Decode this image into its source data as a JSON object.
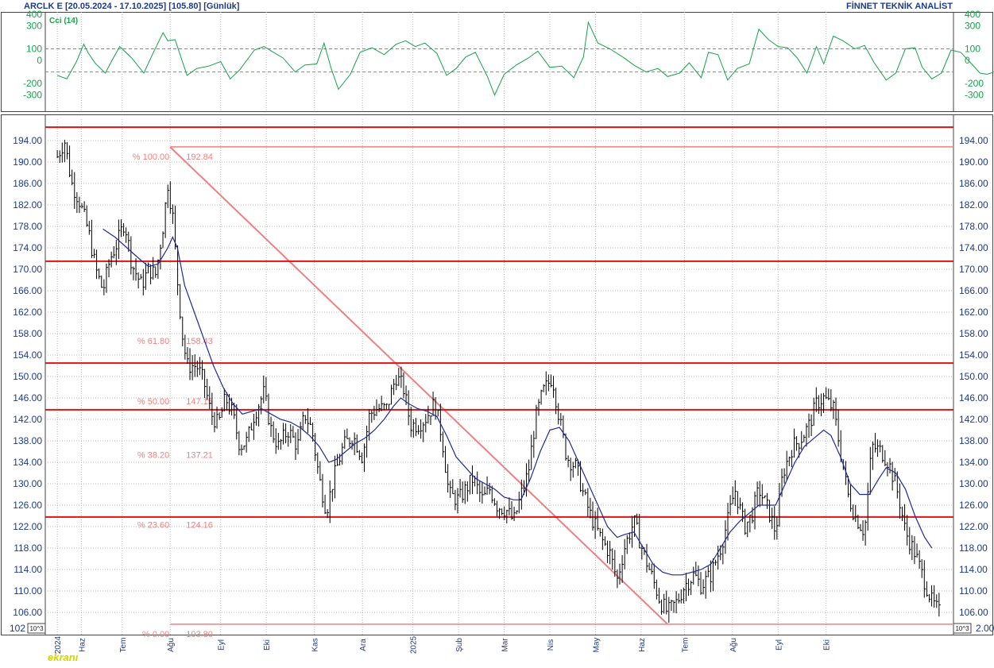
{
  "header": {
    "title": "ARCLK E  [20.05.2024 - 17.10.2025]  [105.80]  [Günlük]",
    "brand": "FİNNET TEKNİK ANALİST"
  },
  "indicator": {
    "label": "Cci (14)"
  },
  "axis_badges": {
    "left": "10^3",
    "right": "10^3"
  },
  "logo": "ekranı",
  "colors": {
    "price_bars": "#000000",
    "moving_average": "#1e2b9c",
    "cci_line": "#16a34a",
    "support_resistance": "#d91515",
    "fibonacci": "#f08080",
    "axis_text": "#1e3a8a",
    "grid": "#b8b8b8"
  },
  "chart_data": [
    {
      "type": "line",
      "name": "Cci (14)",
      "ylim": [
        -440,
        420
      ],
      "y_ticks": [
        400,
        300,
        100,
        0,
        -200,
        -300
      ],
      "y_tick_labels": [
        "400",
        "300",
        "100",
        "0",
        "-200",
        "-300"
      ],
      "dashed_levels": [
        100,
        -100
      ],
      "points": [
        [
          0.0,
          -130
        ],
        [
          0.4,
          -160
        ],
        [
          0.8,
          -10
        ],
        [
          1.1,
          140
        ],
        [
          1.3,
          60
        ],
        [
          1.6,
          -30
        ],
        [
          2.0,
          -110
        ],
        [
          2.3,
          10
        ],
        [
          2.6,
          120
        ],
        [
          3.1,
          20
        ],
        [
          3.6,
          -110
        ],
        [
          4.0,
          70
        ],
        [
          4.4,
          240
        ],
        [
          4.6,
          170
        ],
        [
          4.9,
          180
        ],
        [
          5.4,
          -130
        ],
        [
          5.8,
          -70
        ],
        [
          6.3,
          -50
        ],
        [
          6.8,
          -10
        ],
        [
          7.2,
          -160
        ],
        [
          7.6,
          -80
        ],
        [
          8.2,
          90
        ],
        [
          8.6,
          120
        ],
        [
          9.0,
          70
        ],
        [
          9.4,
          20
        ],
        [
          9.9,
          -100
        ],
        [
          10.3,
          -40
        ],
        [
          10.8,
          -30
        ],
        [
          11.1,
          150
        ],
        [
          11.4,
          -70
        ],
        [
          11.7,
          -250
        ],
        [
          12.2,
          -120
        ],
        [
          12.6,
          70
        ],
        [
          13.1,
          110
        ],
        [
          13.6,
          50
        ],
        [
          14.1,
          140
        ],
        [
          14.5,
          170
        ],
        [
          14.9,
          120
        ],
        [
          15.3,
          150
        ],
        [
          15.8,
          60
        ],
        [
          16.2,
          -130
        ],
        [
          16.6,
          -70
        ],
        [
          17.0,
          30
        ],
        [
          17.4,
          70
        ],
        [
          17.9,
          -140
        ],
        [
          18.2,
          -300
        ],
        [
          18.6,
          -120
        ],
        [
          19.1,
          -40
        ],
        [
          19.6,
          20
        ],
        [
          20.0,
          80
        ],
        [
          20.5,
          -60
        ],
        [
          21.0,
          -50
        ],
        [
          21.5,
          -150
        ],
        [
          21.9,
          30
        ],
        [
          22.1,
          330
        ],
        [
          22.5,
          150
        ],
        [
          23.0,
          100
        ],
        [
          23.6,
          20
        ],
        [
          24.0,
          -40
        ],
        [
          24.5,
          -100
        ],
        [
          25.0,
          -70
        ],
        [
          25.4,
          -140
        ],
        [
          25.9,
          -110
        ],
        [
          26.3,
          -20
        ],
        [
          26.8,
          -150
        ],
        [
          27.1,
          70
        ],
        [
          27.5,
          50
        ],
        [
          27.9,
          -170
        ],
        [
          28.3,
          -70
        ],
        [
          28.8,
          -30
        ],
        [
          29.2,
          270
        ],
        [
          29.6,
          180
        ],
        [
          30.0,
          120
        ],
        [
          30.4,
          110
        ],
        [
          30.8,
          20
        ],
        [
          31.2,
          -110
        ],
        [
          31.6,
          120
        ],
        [
          31.9,
          -30
        ],
        [
          32.3,
          210
        ],
        [
          32.7,
          170
        ],
        [
          33.2,
          100
        ],
        [
          33.6,
          130
        ],
        [
          34.0,
          -20
        ],
        [
          34.5,
          -170
        ],
        [
          34.9,
          -110
        ],
        [
          35.3,
          100
        ],
        [
          35.7,
          110
        ],
        [
          36.0,
          -60
        ],
        [
          36.4,
          -160
        ],
        [
          36.8,
          -110
        ],
        [
          37.2,
          90
        ],
        [
          37.6,
          70
        ],
        [
          38.1,
          -40
        ],
        [
          38.4,
          -110
        ],
        [
          38.7,
          -120
        ],
        [
          39.0,
          -100
        ],
        [
          39.4,
          -130
        ]
      ]
    },
    {
      "type": "line",
      "title": "ARCLK E  [20.05.2024 - 17.10.2025]  [105.80]  [Günlük]",
      "ylim": [
        102,
        198
      ],
      "y_ticks": [
        194,
        190,
        186,
        182,
        178,
        174,
        170,
        166,
        162,
        158,
        154,
        150,
        146,
        142,
        138,
        134,
        130,
        126,
        122,
        118,
        114,
        110,
        106
      ],
      "y_tick_labels": [
        "194.00",
        "190.00",
        "186.00",
        "182.00",
        "178.00",
        "174.00",
        "170.00",
        "166.00",
        "162.00",
        "158.00",
        "154.00",
        "150.00",
        "146.00",
        "142.00",
        "138.00",
        "134.00",
        "130.00",
        "126.00",
        "122.00",
        "118.00",
        "114.00",
        "110.00",
        "106.00"
      ],
      "y_bottom_labels": {
        "left": "102",
        "right": "2.00"
      },
      "x_ticks": [
        "2024",
        "Haz",
        "Tem",
        "Ağu",
        "Eyl",
        "Eki",
        "Kas",
        "Ara",
        "2025",
        "Şub",
        "Mar",
        "Nis",
        "May",
        "Haz",
        "Tem",
        "Ağu",
        "Eyl",
        "Eki"
      ],
      "x_tick_positions": [
        0.0,
        1.0,
        2.7,
        4.7,
        6.8,
        8.7,
        10.7,
        12.7,
        14.8,
        16.7,
        18.6,
        20.5,
        22.4,
        24.3,
        26.1,
        28.1,
        30.0,
        32.0
      ],
      "close": [
        [
          0.0,
          191
        ],
        [
          0.3,
          194
        ],
        [
          0.6,
          186
        ],
        [
          0.9,
          183
        ],
        [
          1.3,
          177
        ],
        [
          1.6,
          170
        ],
        [
          1.9,
          166
        ],
        [
          2.2,
          172
        ],
        [
          2.5,
          175
        ],
        [
          2.8,
          179
        ],
        [
          3.1,
          171
        ],
        [
          3.5,
          167
        ],
        [
          3.8,
          170
        ],
        [
          4.1,
          169
        ],
        [
          4.4,
          178
        ],
        [
          4.6,
          186
        ],
        [
          4.8,
          180
        ],
        [
          5.0,
          168
        ],
        [
          5.2,
          158
        ],
        [
          5.4,
          152
        ],
        [
          5.8,
          152
        ],
        [
          6.1,
          149
        ],
        [
          6.4,
          143
        ],
        [
          6.7,
          141
        ],
        [
          7.0,
          146
        ],
        [
          7.3,
          143
        ],
        [
          7.6,
          137
        ],
        [
          7.9,
          138
        ],
        [
          8.2,
          143
        ],
        [
          8.6,
          147
        ],
        [
          8.9,
          140
        ],
        [
          9.2,
          137
        ],
        [
          9.6,
          140
        ],
        [
          10.0,
          137
        ],
        [
          10.3,
          143
        ],
        [
          10.6,
          140
        ],
        [
          10.9,
          131
        ],
        [
          11.2,
          125
        ],
        [
          11.5,
          131
        ],
        [
          11.9,
          137
        ],
        [
          12.3,
          139
        ],
        [
          12.7,
          135
        ],
        [
          13.0,
          143
        ],
        [
          13.3,
          144
        ],
        [
          13.7,
          144
        ],
        [
          14.1,
          150
        ],
        [
          14.4,
          148
        ],
        [
          14.7,
          141
        ],
        [
          15.0,
          141
        ],
        [
          15.3,
          142
        ],
        [
          15.7,
          145
        ],
        [
          16.0,
          139
        ],
        [
          16.3,
          128
        ],
        [
          16.7,
          127
        ],
        [
          17.0,
          129
        ],
        [
          17.3,
          131
        ],
        [
          17.7,
          127
        ],
        [
          18.0,
          129
        ],
        [
          18.3,
          126
        ],
        [
          18.7,
          125
        ],
        [
          19.0,
          123
        ],
        [
          19.3,
          128
        ],
        [
          19.6,
          132
        ],
        [
          19.9,
          142
        ],
        [
          20.2,
          147
        ],
        [
          20.6,
          150
        ],
        [
          20.9,
          142
        ],
        [
          21.2,
          135
        ],
        [
          21.6,
          133
        ],
        [
          21.9,
          128
        ],
        [
          22.2,
          124
        ],
        [
          22.6,
          120
        ],
        [
          23.0,
          117
        ],
        [
          23.3,
          112
        ],
        [
          23.6,
          118
        ],
        [
          24.0,
          123
        ],
        [
          24.4,
          117
        ],
        [
          24.8,
          112
        ],
        [
          25.1,
          108
        ],
        [
          25.4,
          106
        ],
        [
          25.8,
          108
        ],
        [
          26.1,
          111
        ],
        [
          26.5,
          113
        ],
        [
          26.8,
          111
        ],
        [
          27.2,
          113
        ],
        [
          27.6,
          118
        ],
        [
          27.9,
          123
        ],
        [
          28.2,
          129
        ],
        [
          28.6,
          122
        ],
        [
          28.9,
          124
        ],
        [
          29.2,
          129
        ],
        [
          29.6,
          125
        ],
        [
          29.9,
          121
        ],
        [
          30.2,
          132
        ],
        [
          30.6,
          137
        ],
        [
          30.9,
          138
        ],
        [
          31.3,
          141
        ],
        [
          31.6,
          145
        ],
        [
          31.9,
          146
        ],
        [
          32.3,
          144
        ],
        [
          32.6,
          136
        ],
        [
          32.9,
          128
        ],
        [
          33.2,
          124
        ],
        [
          33.6,
          121
        ],
        [
          33.9,
          137
        ],
        [
          34.3,
          136
        ],
        [
          34.6,
          134
        ],
        [
          35.0,
          128
        ],
        [
          35.3,
          121
        ],
        [
          35.7,
          117
        ],
        [
          36.0,
          113
        ],
        [
          36.4,
          108
        ],
        [
          36.7,
          106
        ]
      ],
      "moving_average": [
        [
          1.9,
          177.5
        ],
        [
          2.4,
          176
        ],
        [
          2.9,
          174
        ],
        [
          3.4,
          172
        ],
        [
          3.8,
          170.5
        ],
        [
          4.2,
          171
        ],
        [
          4.6,
          174
        ],
        [
          4.8,
          176
        ],
        [
          5.0,
          174
        ],
        [
          5.3,
          167
        ],
        [
          5.7,
          162
        ],
        [
          6.1,
          157
        ],
        [
          6.5,
          152
        ],
        [
          6.9,
          148
        ],
        [
          7.3,
          145
        ],
        [
          7.7,
          143
        ],
        [
          8.1,
          143.5
        ],
        [
          8.5,
          144
        ],
        [
          8.9,
          143
        ],
        [
          9.3,
          142
        ],
        [
          9.7,
          141.5
        ],
        [
          10.1,
          140.5
        ],
        [
          10.5,
          139
        ],
        [
          10.9,
          137
        ],
        [
          11.3,
          134
        ],
        [
          11.6,
          134.5
        ],
        [
          12.0,
          136
        ],
        [
          12.4,
          137.5
        ],
        [
          12.8,
          138.5
        ],
        [
          13.2,
          140
        ],
        [
          13.6,
          142
        ],
        [
          14.0,
          144.5
        ],
        [
          14.3,
          146
        ],
        [
          14.6,
          145
        ],
        [
          15.0,
          144
        ],
        [
          15.4,
          143.5
        ],
        [
          15.8,
          142.5
        ],
        [
          16.2,
          139
        ],
        [
          16.6,
          135
        ],
        [
          17.0,
          133
        ],
        [
          17.4,
          131
        ],
        [
          17.8,
          130
        ],
        [
          18.2,
          129
        ],
        [
          18.6,
          127.5
        ],
        [
          19.0,
          127
        ],
        [
          19.3,
          127
        ],
        [
          19.7,
          131
        ],
        [
          20.1,
          136
        ],
        [
          20.5,
          140
        ],
        [
          20.9,
          140.5
        ],
        [
          21.3,
          138
        ],
        [
          21.7,
          134
        ],
        [
          22.1,
          130
        ],
        [
          22.5,
          126
        ],
        [
          22.9,
          122
        ],
        [
          23.3,
          120
        ],
        [
          23.6,
          120.5
        ],
        [
          24.0,
          121
        ],
        [
          24.4,
          118
        ],
        [
          24.8,
          115
        ],
        [
          25.2,
          113.5
        ],
        [
          25.6,
          113
        ],
        [
          26.0,
          113
        ],
        [
          26.4,
          113.5
        ],
        [
          26.8,
          114
        ],
        [
          27.2,
          115
        ],
        [
          27.6,
          118
        ],
        [
          28.0,
          121
        ],
        [
          28.4,
          123
        ],
        [
          28.8,
          124.5
        ],
        [
          29.2,
          126
        ],
        [
          29.6,
          126
        ],
        [
          29.9,
          126
        ],
        [
          30.3,
          130
        ],
        [
          30.7,
          134
        ],
        [
          31.1,
          137
        ],
        [
          31.5,
          138.5
        ],
        [
          31.9,
          140
        ],
        [
          32.2,
          139
        ],
        [
          32.6,
          135
        ],
        [
          33.0,
          130
        ],
        [
          33.4,
          128
        ],
        [
          33.8,
          128
        ],
        [
          34.2,
          131
        ],
        [
          34.5,
          133
        ],
        [
          34.9,
          132
        ],
        [
          35.3,
          129
        ],
        [
          35.7,
          124
        ],
        [
          36.1,
          120
        ],
        [
          36.4,
          118
        ]
      ],
      "horizontal_levels": [
        196.5,
        171.5,
        152.5,
        143.8,
        123.8
      ],
      "fibonacci": {
        "trendline": [
          [
            4.7,
            192.8
          ],
          [
            25.4,
            103.8
          ]
        ],
        "levels": [
          {
            "label": "% 100.00",
            "value": 192.84,
            "value_label": "192.84"
          },
          {
            "label": "% 61.80",
            "value": 158.43,
            "value_label": "158.43"
          },
          {
            "label": "% 50.00",
            "value": 147.15,
            "value_label": "147.15"
          },
          {
            "label": "% 38.20",
            "value": 137.21,
            "value_label": "137.21"
          },
          {
            "label": "% 23.60",
            "value": 124.16,
            "value_label": "124.16"
          },
          {
            "label": "% 0.00",
            "value": 103.8,
            "value_label": "103.80"
          }
        ]
      }
    }
  ]
}
